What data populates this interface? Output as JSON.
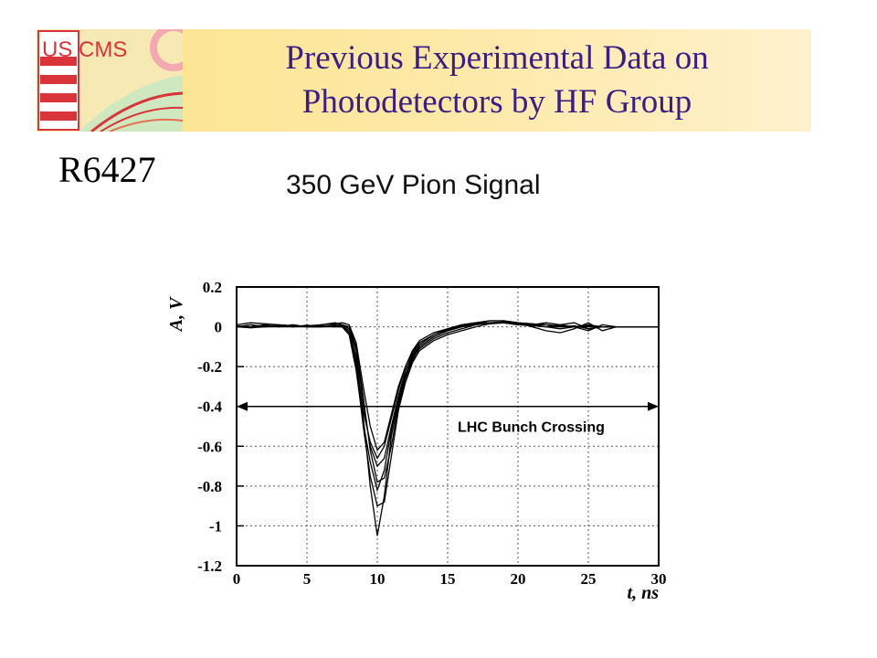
{
  "slide": {
    "title_line1": "Previous Experimental Data on",
    "title_line2": "Photodetectors by HF Group",
    "model": "R6427",
    "logo_text": "US CMS"
  },
  "colors": {
    "title": "#3a1d86",
    "band": "#fde9a8",
    "logo_red": "#d9343a"
  },
  "chart_data": {
    "type": "line",
    "title": "350 GeV Pion Signal",
    "xlabel": "t, ns",
    "ylabel": "A, V",
    "xlim": [
      0,
      30
    ],
    "ylim": [
      -1.2,
      0.2
    ],
    "x_ticks": [
      "0",
      "5",
      "10",
      "15",
      "20",
      "25",
      "30"
    ],
    "y_ticks": [
      "0.2",
      "0",
      "-0.2",
      "-0.4",
      "-0.6",
      "-0.8",
      "-1",
      "-1.2"
    ],
    "grid": true,
    "annotation": {
      "text": "LHC Bunch Crossing",
      "arrow_from": 0,
      "arrow_to": 30,
      "y": -0.4
    },
    "x": [
      0,
      1,
      2,
      3,
      4,
      5,
      6,
      7,
      7.5,
      8,
      8.5,
      9,
      9.5,
      10,
      10.5,
      11,
      11.5,
      12,
      12.5,
      13,
      14,
      15,
      16,
      17,
      18,
      19,
      20,
      21,
      22,
      23,
      24,
      25,
      26,
      27,
      28,
      29,
      30
    ],
    "series": [
      {
        "values": [
          0,
          0.01,
          0,
          0.005,
          0,
          0.008,
          0,
          0.01,
          0.005,
          -0.02,
          -0.15,
          -0.45,
          -0.8,
          -1.05,
          -0.85,
          -0.55,
          -0.38,
          -0.25,
          -0.16,
          -0.11,
          -0.06,
          -0.03,
          -0.01,
          0.01,
          0.02,
          0.025,
          0.02,
          0.015,
          0.01,
          0.005,
          0,
          0.005,
          0,
          0,
          0,
          0,
          0
        ]
      },
      {
        "values": [
          0,
          0,
          0.01,
          0,
          0.01,
          0,
          0.005,
          0,
          0,
          -0.03,
          -0.2,
          -0.5,
          -0.75,
          -0.9,
          -0.88,
          -0.65,
          -0.42,
          -0.28,
          -0.18,
          -0.12,
          -0.07,
          -0.04,
          -0.02,
          0,
          0.015,
          0.02,
          0.015,
          0.01,
          0.01,
          0,
          0.005,
          -0.01,
          0,
          0,
          0,
          0,
          0
        ]
      },
      {
        "values": [
          0.01,
          0.02,
          0.015,
          0.01,
          0.005,
          0,
          0,
          0.005,
          0.01,
          0,
          -0.1,
          -0.35,
          -0.62,
          -0.78,
          -0.76,
          -0.6,
          -0.4,
          -0.26,
          -0.17,
          -0.1,
          -0.05,
          -0.02,
          0,
          0.02,
          0.03,
          0.03,
          0.02,
          0.01,
          0,
          -0.01,
          0,
          0.01,
          0,
          0,
          0,
          0,
          0
        ]
      },
      {
        "values": [
          0,
          0,
          0.005,
          0,
          0,
          0.005,
          0.01,
          0.02,
          0.01,
          -0.01,
          -0.12,
          -0.38,
          -0.6,
          -0.7,
          -0.66,
          -0.5,
          -0.35,
          -0.22,
          -0.14,
          -0.09,
          -0.04,
          -0.015,
          0.005,
          0.015,
          0.02,
          0.02,
          0.015,
          0.01,
          0.02,
          0.01,
          0,
          -0.02,
          0.01,
          0,
          0,
          0,
          0
        ]
      },
      {
        "values": [
          0,
          -0.005,
          0,
          0.005,
          0,
          0,
          0,
          0.005,
          0,
          -0.02,
          -0.18,
          -0.42,
          -0.58,
          -0.66,
          -0.6,
          -0.46,
          -0.32,
          -0.2,
          -0.13,
          -0.08,
          -0.04,
          -0.01,
          0.01,
          0.02,
          0.03,
          0.03,
          0.02,
          0,
          -0.02,
          -0.03,
          -0.01,
          0.02,
          -0.02,
          0,
          0,
          0,
          0
        ]
      },
      {
        "values": [
          0.005,
          0,
          0,
          0.01,
          0.005,
          0,
          0.01,
          0.015,
          0.02,
          0.01,
          -0.08,
          -0.3,
          -0.5,
          -0.62,
          -0.58,
          -0.44,
          -0.3,
          -0.2,
          -0.12,
          -0.07,
          -0.03,
          -0.01,
          0.01,
          0.02,
          0.02,
          0.02,
          0.01,
          0.01,
          0,
          0.01,
          0.02,
          -0.01,
          0,
          0,
          0,
          0,
          0
        ]
      },
      {
        "values": [
          0,
          0.01,
          0,
          0,
          0.01,
          0,
          0,
          0,
          0,
          -0.04,
          -0.22,
          -0.48,
          -0.68,
          -0.82,
          -0.72,
          -0.52,
          -0.36,
          -0.24,
          -0.15,
          -0.1,
          -0.05,
          -0.02,
          0,
          0.01,
          0.02,
          0.02,
          0.01,
          0.005,
          0,
          0,
          0,
          0,
          0,
          0,
          0,
          0,
          0
        ]
      }
    ]
  }
}
